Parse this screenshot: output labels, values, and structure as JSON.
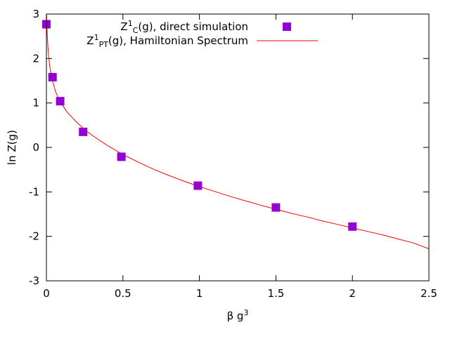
{
  "chart_data": {
    "type": "scatter",
    "title": "",
    "xlabel_base": "β g",
    "xlabel_sup": "3",
    "ylabel": "ln Z(g)",
    "xlim": [
      0,
      2.5
    ],
    "ylim": [
      -3,
      3
    ],
    "x_ticks": [
      "0",
      "0.5",
      "1",
      "1.5",
      "2",
      "2.5"
    ],
    "x_tick_values": [
      0,
      0.5,
      1,
      1.5,
      2,
      2.5
    ],
    "y_ticks": [
      "-3",
      "-2",
      "-1",
      "0",
      "1",
      "2",
      "3"
    ],
    "y_tick_values": [
      -3,
      -2,
      -1,
      0,
      1,
      2,
      3
    ],
    "grid": false,
    "legend_position": "top-right",
    "series": [
      {
        "name_parts": [
          "Z",
          "1",
          "C",
          "(g), direct simulation"
        ],
        "marker": "square",
        "color": "#9400d3",
        "x": [
          0.0,
          0.04,
          0.09,
          0.24,
          0.49,
          0.99,
          1.5,
          2.0
        ],
        "y": [
          2.77,
          1.58,
          1.04,
          0.35,
          -0.21,
          -0.86,
          -1.35,
          -1.78
        ]
      },
      {
        "name_parts": [
          "Z",
          "1",
          "PT",
          "(g), Hamiltonian Spectrum"
        ],
        "marker": "line",
        "color": "#ff0000",
        "x": [
          0.001,
          0.005,
          0.01,
          0.02,
          0.03,
          0.04,
          0.06,
          0.08,
          0.1,
          0.13,
          0.16,
          0.2,
          0.25,
          0.3,
          0.4,
          0.5,
          0.6,
          0.7,
          0.8,
          0.9,
          1.0,
          1.1,
          1.2,
          1.3,
          1.4,
          1.5,
          1.6,
          1.7,
          1.8,
          1.9,
          2.0,
          2.1,
          2.2,
          2.3,
          2.4,
          2.5
        ],
        "y": [
          2.98,
          2.55,
          2.25,
          1.87,
          1.66,
          1.5,
          1.25,
          1.1,
          0.98,
          0.82,
          0.7,
          0.56,
          0.4,
          0.27,
          0.04,
          -0.16,
          -0.33,
          -0.49,
          -0.63,
          -0.76,
          -0.88,
          -0.99,
          -1.1,
          -1.2,
          -1.3,
          -1.39,
          -1.48,
          -1.56,
          -1.65,
          -1.73,
          -1.81,
          -1.89,
          -1.97,
          -2.06,
          -2.15,
          -2.28
        ]
      }
    ]
  }
}
